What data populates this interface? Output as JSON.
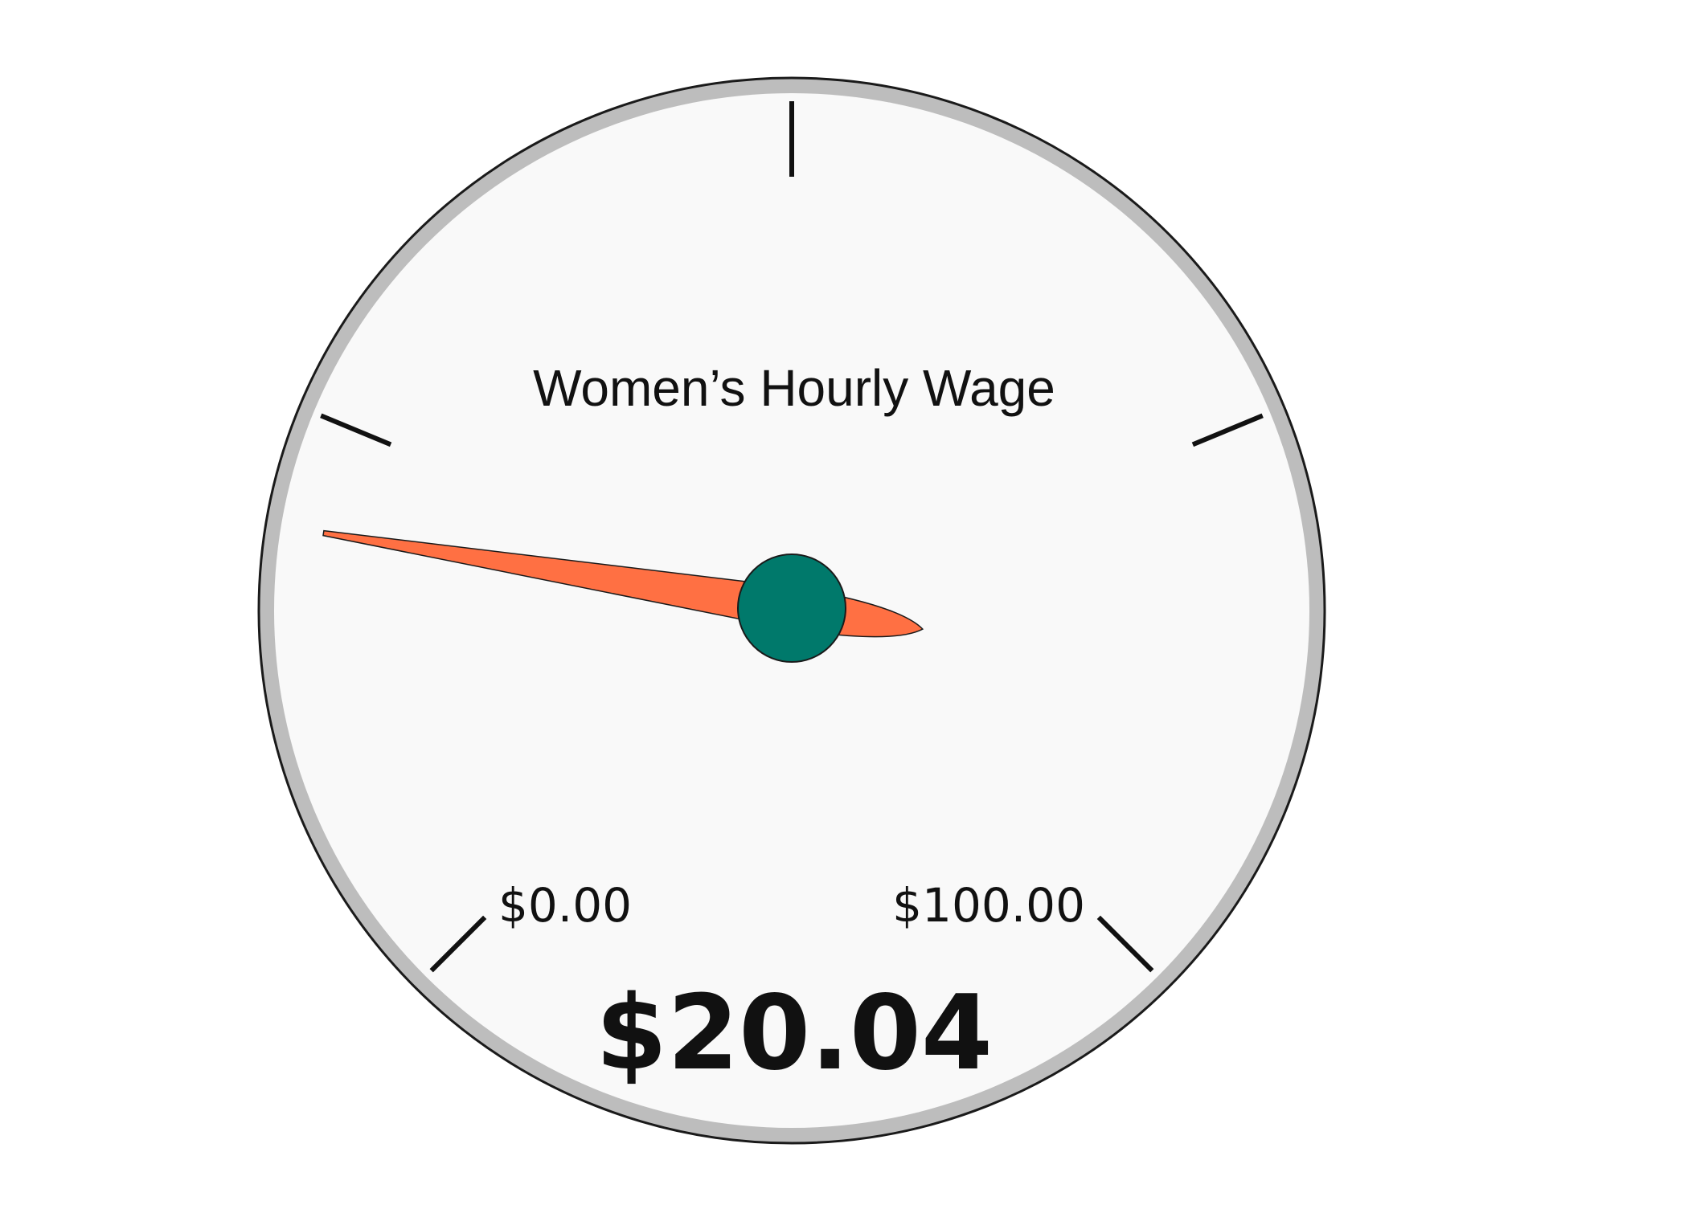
{
  "chart_data": {
    "type": "gauge",
    "title": "Women’s Hourly Wage",
    "value": 20.04,
    "value_label": "$20.04",
    "min": 0,
    "max": 100,
    "min_label": "$0.00",
    "max_label": "$100.00",
    "major_ticks": 5
  },
  "colors": {
    "face": "#f9f9f9",
    "rim": "#bdbdbd",
    "outline": "#1a1a1a",
    "needle": "#ff7043",
    "hub": "#00796b",
    "tick": "#111111"
  }
}
